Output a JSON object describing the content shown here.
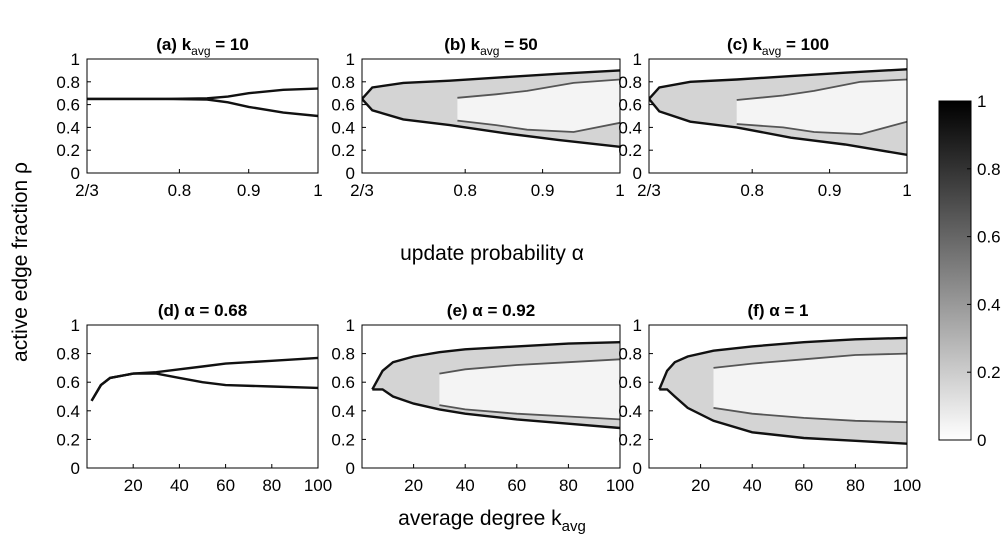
{
  "figure": {
    "ylabel": "active edge fraction ρ",
    "xlabel_top": "update probability α",
    "xlabel_bottom_main": "average degree k",
    "xlabel_bottom_sub": "avg"
  },
  "colorbar": {
    "ticks": [
      "0",
      "0.2",
      "0.4",
      "0.6",
      "0.8",
      "1"
    ],
    "ylim": [
      0,
      1
    ],
    "colors": {
      "low": "#ffffff",
      "high": "#000000"
    }
  },
  "chart_data": [
    {
      "id": "a",
      "type": "heatmap",
      "title_prefix": "(a) k",
      "title_sub": "avg",
      "title_suffix": " = 10",
      "x_axis": "alpha",
      "xlim": [
        0.6667,
        1
      ],
      "ylim": [
        0,
        1
      ],
      "xtick_values": [
        0.6667,
        0.8,
        0.9,
        1
      ],
      "xtick_labels": [
        "2/3",
        "0.8",
        "0.9",
        "1"
      ],
      "ytick_labels": [
        "0",
        "0.2",
        "0.4",
        "0.6",
        "0.8",
        "1"
      ],
      "branches": [
        {
          "x": [
            0.6667,
            0.78,
            0.84,
            0.87,
            0.9,
            0.95,
            1
          ],
          "upper": [
            0.65,
            0.65,
            0.655,
            0.67,
            0.7,
            0.73,
            0.74
          ],
          "lower": [
            0.65,
            0.65,
            0.645,
            0.62,
            0.58,
            0.53,
            0.5
          ]
        }
      ]
    },
    {
      "id": "b",
      "type": "heatmap",
      "title_prefix": "(b) k",
      "title_sub": "avg",
      "title_suffix": " = 50",
      "x_axis": "alpha",
      "xlim": [
        0.6667,
        1
      ],
      "ylim": [
        0,
        1
      ],
      "xtick_values": [
        0.6667,
        0.8,
        0.9,
        1
      ],
      "xtick_labels": [
        "2/3",
        "0.8",
        "0.9",
        "1"
      ],
      "ytick_labels": [
        "0",
        "0.2",
        "0.4",
        "0.6",
        "0.8",
        "1"
      ],
      "branches": [
        {
          "x": [
            0.6667,
            0.68,
            0.72,
            0.78,
            0.85,
            0.92,
            1
          ],
          "upper": [
            0.65,
            0.75,
            0.79,
            0.81,
            0.84,
            0.87,
            0.9
          ],
          "lower": [
            0.65,
            0.55,
            0.47,
            0.42,
            0.35,
            0.29,
            0.23
          ]
        },
        {
          "x": [
            0.79,
            0.84,
            0.88,
            0.94,
            1
          ],
          "upper": [
            0.66,
            0.69,
            0.72,
            0.79,
            0.82
          ],
          "lower": [
            0.46,
            0.42,
            0.38,
            0.36,
            0.44
          ]
        }
      ]
    },
    {
      "id": "c",
      "type": "heatmap",
      "title_prefix": "(c) k",
      "title_sub": "avg",
      "title_suffix": " = 100",
      "x_axis": "alpha",
      "xlim": [
        0.6667,
        1
      ],
      "ylim": [
        0,
        1
      ],
      "xtick_values": [
        0.6667,
        0.8,
        0.9,
        1
      ],
      "xtick_labels": [
        "2/3",
        "0.8",
        "0.9",
        "1"
      ],
      "ytick_labels": [
        "0",
        "0.2",
        "0.4",
        "0.6",
        "0.8",
        "1"
      ],
      "branches": [
        {
          "x": [
            0.6667,
            0.68,
            0.72,
            0.78,
            0.85,
            0.92,
            1
          ],
          "upper": [
            0.65,
            0.75,
            0.8,
            0.82,
            0.85,
            0.88,
            0.91
          ],
          "lower": [
            0.65,
            0.54,
            0.45,
            0.4,
            0.31,
            0.25,
            0.16
          ]
        },
        {
          "x": [
            0.78,
            0.84,
            0.88,
            0.94,
            1
          ],
          "upper": [
            0.64,
            0.68,
            0.72,
            0.8,
            0.82
          ],
          "lower": [
            0.43,
            0.4,
            0.36,
            0.34,
            0.45
          ]
        }
      ]
    },
    {
      "id": "d",
      "type": "heatmap",
      "title_prefix": "(d) α = 0.68",
      "title_sub": "",
      "title_suffix": "",
      "x_axis": "kavg",
      "xlim": [
        0,
        100
      ],
      "ylim": [
        0,
        1
      ],
      "xtick_values": [
        20,
        40,
        60,
        80,
        100
      ],
      "xtick_labels": [
        "20",
        "40",
        "60",
        "80",
        "100"
      ],
      "ytick_labels": [
        "0",
        "0.2",
        "0.4",
        "0.6",
        "0.8",
        "1"
      ],
      "branches": [
        {
          "x": [
            2,
            6,
            10,
            20,
            30,
            40,
            50,
            60,
            80,
            100
          ],
          "upper": [
            0.47,
            0.58,
            0.63,
            0.66,
            0.67,
            0.69,
            0.71,
            0.73,
            0.75,
            0.77
          ],
          "lower": [
            0.47,
            0.58,
            0.63,
            0.66,
            0.66,
            0.63,
            0.6,
            0.58,
            0.57,
            0.56
          ]
        }
      ]
    },
    {
      "id": "e",
      "type": "heatmap",
      "title_prefix": "(e) α = 0.92",
      "title_sub": "",
      "title_suffix": "",
      "x_axis": "kavg",
      "xlim": [
        0,
        100
      ],
      "ylim": [
        0,
        1
      ],
      "xtick_values": [
        20,
        40,
        60,
        80,
        100
      ],
      "xtick_labels": [
        "20",
        "40",
        "60",
        "80",
        "100"
      ],
      "ytick_labels": [
        "0",
        "0.2",
        "0.4",
        "0.6",
        "0.8",
        "1"
      ],
      "branches": [
        {
          "x": [
            4,
            8,
            12,
            20,
            30,
            40,
            60,
            80,
            100
          ],
          "upper": [
            0.55,
            0.68,
            0.74,
            0.78,
            0.81,
            0.83,
            0.85,
            0.87,
            0.88
          ],
          "lower": [
            0.55,
            0.55,
            0.5,
            0.45,
            0.41,
            0.38,
            0.34,
            0.31,
            0.28
          ]
        },
        {
          "x": [
            30,
            40,
            60,
            80,
            100
          ],
          "upper": [
            0.66,
            0.69,
            0.72,
            0.74,
            0.76
          ],
          "lower": [
            0.44,
            0.41,
            0.38,
            0.36,
            0.34
          ]
        }
      ]
    },
    {
      "id": "f",
      "type": "heatmap",
      "title_prefix": "(f) α = 1",
      "title_sub": "",
      "title_suffix": "",
      "x_axis": "kavg",
      "xlim": [
        0,
        100
      ],
      "ylim": [
        0,
        1
      ],
      "xtick_values": [
        20,
        40,
        60,
        80,
        100
      ],
      "xtick_labels": [
        "20",
        "40",
        "60",
        "80",
        "100"
      ],
      "ytick_labels": [
        "0",
        "0.2",
        "0.4",
        "0.6",
        "0.8",
        "1"
      ],
      "branches": [
        {
          "x": [
            4,
            7,
            10,
            15,
            25,
            40,
            60,
            80,
            100
          ],
          "upper": [
            0.55,
            0.68,
            0.74,
            0.78,
            0.82,
            0.85,
            0.88,
            0.9,
            0.91
          ],
          "lower": [
            0.55,
            0.55,
            0.5,
            0.42,
            0.33,
            0.25,
            0.21,
            0.19,
            0.17
          ]
        },
        {
          "x": [
            25,
            40,
            60,
            80,
            100
          ],
          "upper": [
            0.7,
            0.73,
            0.76,
            0.79,
            0.8
          ],
          "lower": [
            0.42,
            0.38,
            0.35,
            0.33,
            0.32
          ]
        }
      ]
    }
  ]
}
